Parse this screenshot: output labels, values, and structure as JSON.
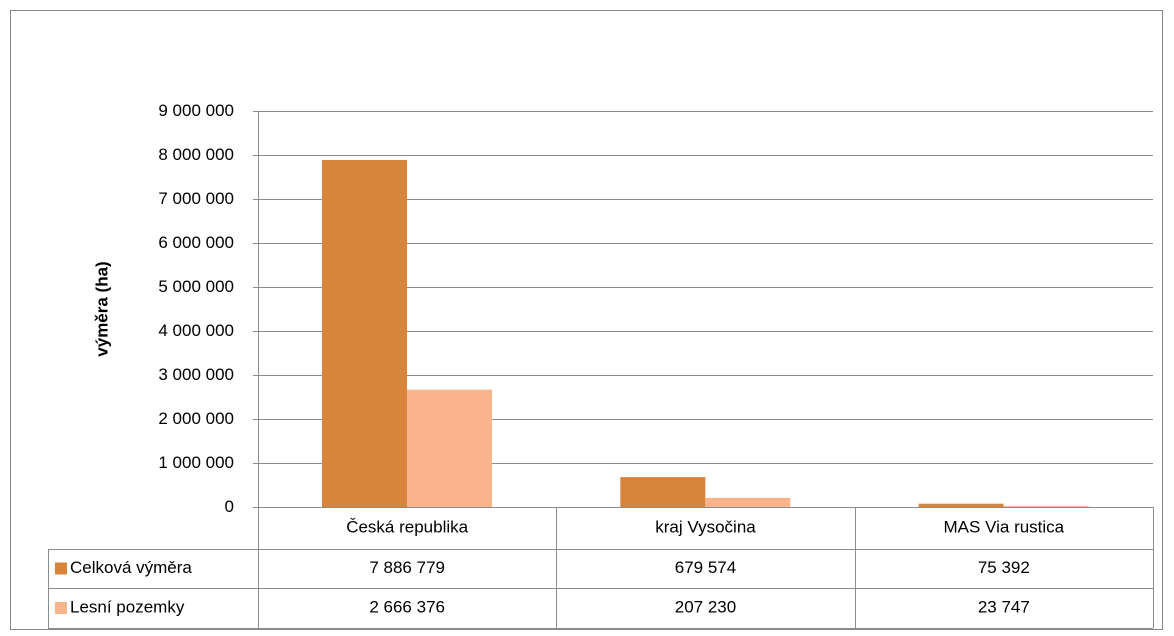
{
  "chart_data": {
    "type": "bar",
    "y_label": "výměra (ha)",
    "categories": [
      "Česká republika",
      "kraj Vysočina",
      "MAS Via rustica"
    ],
    "series": [
      {
        "name": "Celková výměra",
        "color": "#D9843C",
        "values": [
          7886779,
          679574,
          75392
        ],
        "value_labels": [
          "7 886 779",
          "679 574",
          "75 392"
        ]
      },
      {
        "name": "Lesní pozemky",
        "color": "#F9B48C",
        "values": [
          2666376,
          207230,
          23747
        ],
        "value_labels": [
          "2 666 376",
          "207 230",
          "23 747"
        ]
      }
    ],
    "ylim": [
      0,
      9000000
    ],
    "yticks": [
      0,
      {
        "value": 1000000,
        "label": "1 000 000"
      },
      {
        "value": 2000000,
        "label": "2 000 000"
      },
      {
        "value": 3000000,
        "label": "3 000 000"
      },
      {
        "value": 4000000,
        "label": "4 000 000"
      },
      {
        "value": 5000000,
        "label": "5 000 000"
      },
      {
        "value": 6000000,
        "label": "6 000 000"
      },
      {
        "value": 7000000,
        "label": "7 000 000"
      },
      {
        "value": 8000000,
        "label": "8 000 000"
      },
      {
        "value": 9000000,
        "label": "9 000 000"
      }
    ],
    "grid": true
  }
}
